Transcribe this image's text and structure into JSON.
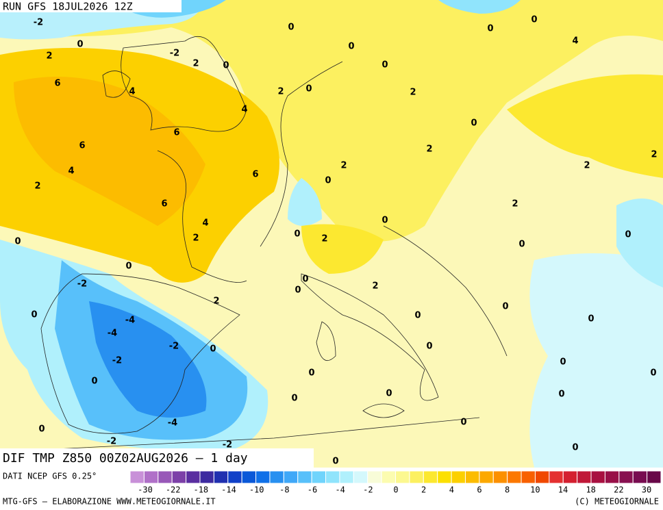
{
  "header": {
    "run": "RUN GFS 18JUL2026 12Z",
    "title": "DIF TMP Z850 00Z02AUG2026 – 1 day"
  },
  "map": {
    "contour_labels": [
      -2,
      0,
      2,
      -2,
      2,
      0,
      0,
      0,
      0,
      0,
      0,
      4,
      6,
      4,
      2,
      0,
      2,
      4,
      6,
      0,
      6,
      2,
      4,
      2,
      2,
      2,
      2,
      6,
      0,
      6,
      4,
      2,
      0,
      2,
      0,
      2,
      0,
      0,
      0,
      0,
      -2,
      0,
      0,
      2,
      2,
      0,
      -4,
      0,
      0,
      0,
      -4,
      -2,
      0,
      0,
      -2,
      0,
      0,
      0,
      0,
      0,
      0,
      0,
      -4,
      0,
      0,
      -2,
      -2,
      0,
      0
    ]
  },
  "legend": {
    "source": "DATI NCEP GFS 0.25°",
    "ticks": [
      -30,
      -22,
      -18,
      -14,
      -10,
      -8,
      -6,
      -4,
      -2,
      0,
      2,
      4,
      6,
      8,
      10,
      14,
      18,
      22,
      30
    ],
    "colors": [
      "#c890d8",
      "#b070c8",
      "#9858b8",
      "#7c40a8",
      "#5a2ea0",
      "#3c2aa0",
      "#2030b0",
      "#1040c8",
      "#0a58d8",
      "#1070e8",
      "#2890f0",
      "#40a8f8",
      "#58c0fa",
      "#70d4fc",
      "#90e4fc",
      "#b0f0fc",
      "#d4f8fc",
      "#f8fcd8",
      "#fcfcb0",
      "#fcf890",
      "#fcf060",
      "#fce830",
      "#fce000",
      "#fcd000",
      "#fcbc00",
      "#fca800",
      "#fc9000",
      "#fc7800",
      "#f86000",
      "#f04800",
      "#e43030",
      "#d42030",
      "#c01838",
      "#a81040",
      "#981048",
      "#881050",
      "#780c50",
      "#680848"
    ]
  },
  "footer": {
    "left": "MTG-GFS – ELABORAZIONE WWW.METEOGIORNALE.IT",
    "right": "(C) METEOGIORNALE"
  }
}
